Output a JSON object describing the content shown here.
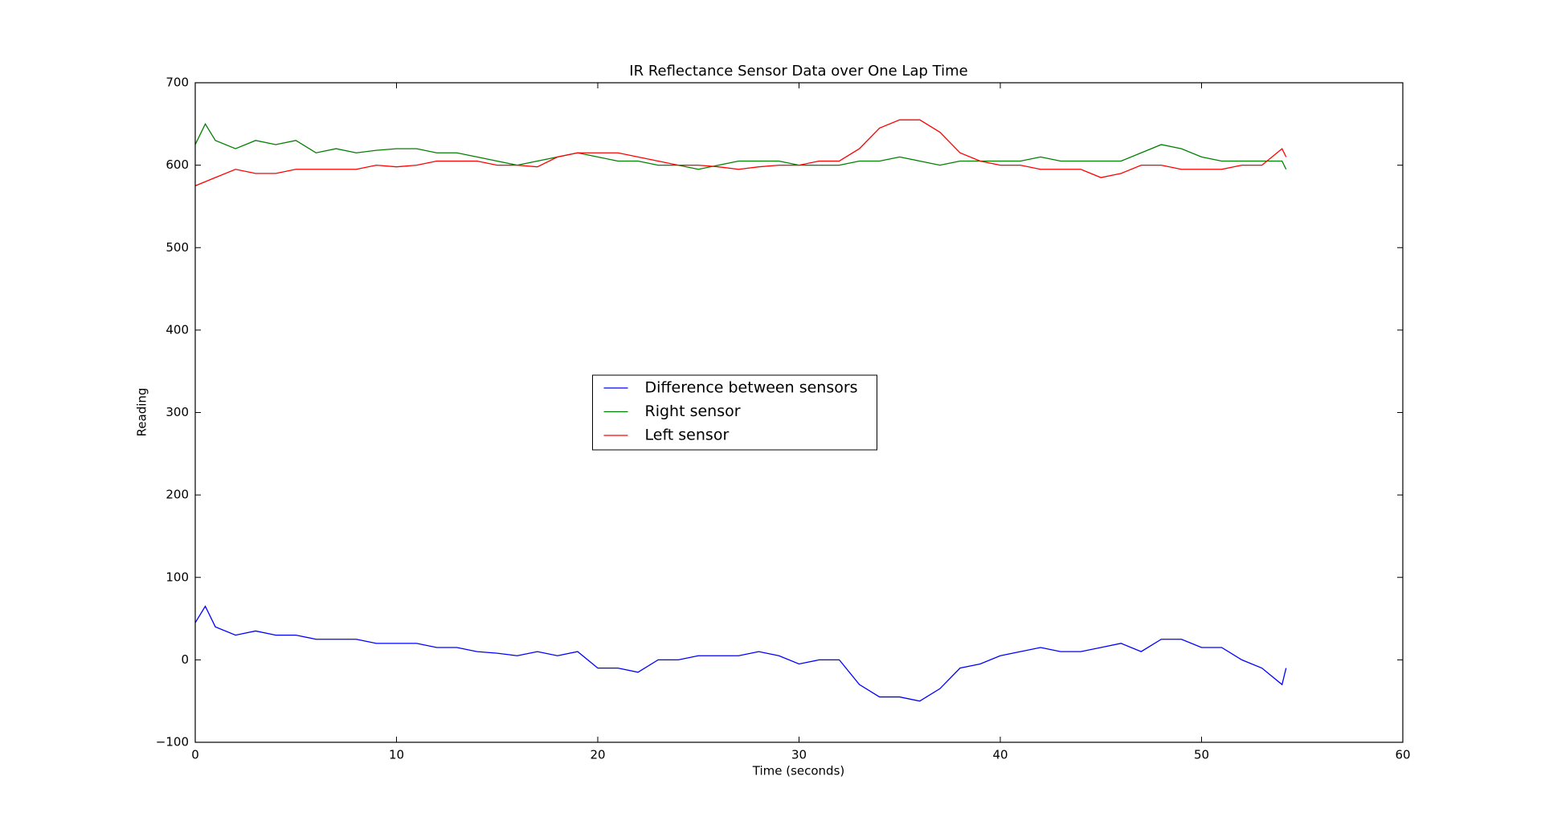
{
  "chart_data": {
    "type": "line",
    "title": "IR Reflectance Sensor Data over One Lap Time",
    "x_label": "Time (seconds)",
    "y_label": "Reading",
    "x": [
      0,
      0.5,
      1,
      2,
      3,
      4,
      5,
      6,
      7,
      8,
      9,
      10,
      11,
      12,
      13,
      14,
      15,
      16,
      17,
      18,
      19,
      20,
      21,
      22,
      23,
      24,
      25,
      26,
      27,
      28,
      29,
      30,
      31,
      32,
      33,
      34,
      35,
      36,
      37,
      38,
      39,
      40,
      41,
      42,
      43,
      44,
      45,
      46,
      47,
      48,
      49,
      50,
      51,
      52,
      53,
      54,
      54.2
    ],
    "series": [
      {
        "name": "Difference between sensors",
        "color": "#0000ff",
        "values": [
          45,
          65,
          40,
          30,
          35,
          30,
          30,
          25,
          25,
          25,
          20,
          20,
          20,
          15,
          15,
          10,
          8,
          5,
          10,
          5,
          10,
          -10,
          -10,
          -15,
          0,
          0,
          5,
          5,
          5,
          10,
          5,
          -5,
          0,
          0,
          -30,
          -45,
          -45,
          -50,
          -35,
          -10,
          -5,
          5,
          10,
          15,
          10,
          10,
          15,
          20,
          10,
          25,
          25,
          15,
          15,
          0,
          -10,
          -30,
          -10
        ]
      },
      {
        "name": "Right sensor",
        "color": "#008000",
        "values": [
          625,
          650,
          630,
          620,
          630,
          625,
          630,
          615,
          620,
          615,
          618,
          620,
          620,
          615,
          615,
          610,
          605,
          600,
          605,
          610,
          615,
          610,
          605,
          605,
          600,
          600,
          595,
          600,
          605,
          605,
          605,
          600,
          600,
          600,
          605,
          605,
          610,
          605,
          600,
          605,
          605,
          605,
          605,
          610,
          605,
          605,
          605,
          605,
          615,
          625,
          620,
          610,
          605,
          605,
          605,
          605,
          595
        ]
      },
      {
        "name": "Left sensor",
        "color": "#ff0000",
        "values": [
          575,
          580,
          585,
          595,
          590,
          590,
          595,
          595,
          595,
          595,
          600,
          598,
          600,
          605,
          605,
          605,
          600,
          600,
          598,
          610,
          615,
          615,
          615,
          610,
          605,
          600,
          600,
          598,
          595,
          598,
          600,
          600,
          605,
          605,
          620,
          645,
          655,
          655,
          640,
          615,
          605,
          600,
          600,
          595,
          595,
          595,
          585,
          590,
          600,
          600,
          595,
          595,
          595,
          600,
          600,
          620,
          610
        ]
      }
    ],
    "xlim": [
      0,
      60
    ],
    "xticks": [
      0,
      10,
      20,
      30,
      40,
      50,
      60
    ],
    "ylim": [
      -100,
      700
    ],
    "yticks": [
      {
        "value": -100,
        "label": "−100"
      },
      0,
      100,
      200,
      300,
      400,
      500,
      600,
      700
    ],
    "legend": "center",
    "grid": false
  }
}
